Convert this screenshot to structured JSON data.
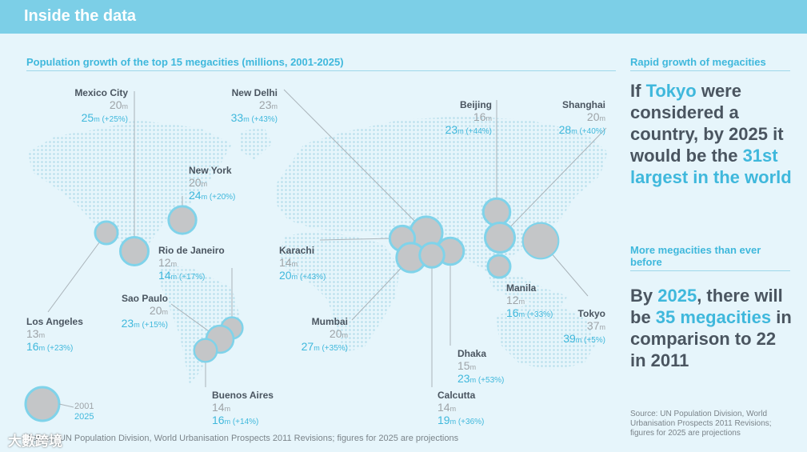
{
  "header": {
    "title": "Inside the data"
  },
  "map_section": {
    "title": "Population growth of the top 15 megacities (millions, 2001-2025)"
  },
  "side_section": {
    "title": "Rapid growth of megacities",
    "tokyo_text": {
      "a": "If ",
      "b": "Tokyo",
      "c": " were considered a country, by 2025 it would be the ",
      "d": "31st largest in the world"
    },
    "subtitle": "More megacities than ever before",
    "count_text": {
      "a": "By ",
      "b": "2025",
      "c": ", there will be ",
      "d": "35 megacities",
      "e": " in comparison to 22 in 2011"
    },
    "source": "Source: UN Population Division, World Urbanisation Prospects 2011 Revisions; figures for 2025 are projections"
  },
  "footer": {
    "source": "Source: UN Population Division, World Urbanisation Prospects 2011 Revisions; figures for 2025 are projections",
    "watermark": "大數跨境"
  },
  "legend": {
    "label_2001": "2001",
    "label_2025": "2025"
  },
  "unit": "m",
  "colors": {
    "header": "#7ccfe7",
    "accent": "#3fb8dc",
    "ring_2025": "#7fd3ea",
    "fill_2001": "#c4c6c8",
    "text_dark": "#4a5560",
    "text_gray": "#9ea4a8"
  },
  "chart_data": {
    "type": "bubble-map",
    "title": "Population growth of the top 15 megacities (millions, 2001-2025)",
    "series": [
      {
        "name": "2001"
      },
      {
        "name": "2025"
      }
    ],
    "cities": [
      {
        "name": "Mexico City",
        "pop_2001": 20,
        "pop_2025": 25,
        "growth": "(+25%)"
      },
      {
        "name": "New Delhi",
        "pop_2001": 23,
        "pop_2025": 33,
        "growth": "(+43%)"
      },
      {
        "name": "Beijing",
        "pop_2001": 16,
        "pop_2025": 23,
        "growth": "(+44%)"
      },
      {
        "name": "Shanghai",
        "pop_2001": 20,
        "pop_2025": 28,
        "growth": "(+40%)"
      },
      {
        "name": "New York",
        "pop_2001": 20,
        "pop_2025": 24,
        "growth": "(+20%)"
      },
      {
        "name": "Rio de Janeiro",
        "pop_2001": 12,
        "pop_2025": 14,
        "growth": "(+17%)"
      },
      {
        "name": "Karachi",
        "pop_2001": 14,
        "pop_2025": 20,
        "growth": "(+43%)"
      },
      {
        "name": "Sao Paulo",
        "pop_2001": 20,
        "pop_2025": 23,
        "growth": "(+15%)"
      },
      {
        "name": "Los Angeles",
        "pop_2001": 13,
        "pop_2025": 16,
        "growth": "(+23%)"
      },
      {
        "name": "Mumbai",
        "pop_2001": 20,
        "pop_2025": 27,
        "growth": "(+35%)"
      },
      {
        "name": "Manila",
        "pop_2001": 12,
        "pop_2025": 16,
        "growth": "(+33%)"
      },
      {
        "name": "Tokyo",
        "pop_2001": 37,
        "pop_2025": 39,
        "growth": "(+5%)"
      },
      {
        "name": "Dhaka",
        "pop_2001": 15,
        "pop_2025": 23,
        "growth": "(+53%)"
      },
      {
        "name": "Buenos Aires",
        "pop_2001": 14,
        "pop_2025": 16,
        "growth": "(+14%)"
      },
      {
        "name": "Calcutta",
        "pop_2001": 14,
        "pop_2025": 19,
        "growth": "(+36%)"
      }
    ]
  }
}
